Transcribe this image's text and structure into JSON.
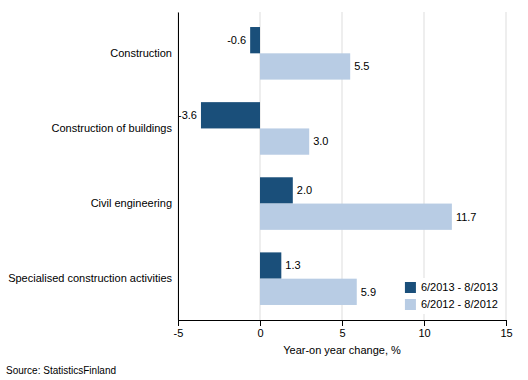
{
  "chart_data": {
    "type": "bar",
    "orientation": "horizontal",
    "categories": [
      "Specialised construction activities",
      "Civil engineering",
      "Construction of buildings",
      "Construction"
    ],
    "series": [
      {
        "name": "6/2013 - 8/2013",
        "color": "#1a4f7a",
        "values": [
          1.3,
          2.0,
          -3.6,
          -0.6
        ],
        "value_labels": [
          "1.3",
          "2.0",
          "-3.6",
          "-0.6"
        ]
      },
      {
        "name": "6/2012 - 8/2012",
        "color": "#b8cce4",
        "values": [
          5.9,
          11.7,
          3.0,
          5.5
        ],
        "value_labels": [
          "5.9",
          "11.7",
          "3.0",
          "5.5"
        ]
      }
    ],
    "xlabel": "Year-on year change, %",
    "annotations": [
      "Source: StatisticsFinland"
    ],
    "xlim": [
      -5,
      15
    ],
    "xticks": [
      -5,
      0,
      5,
      10,
      15
    ],
    "grid": true,
    "legend": "lower right",
    "data_labels": true
  }
}
